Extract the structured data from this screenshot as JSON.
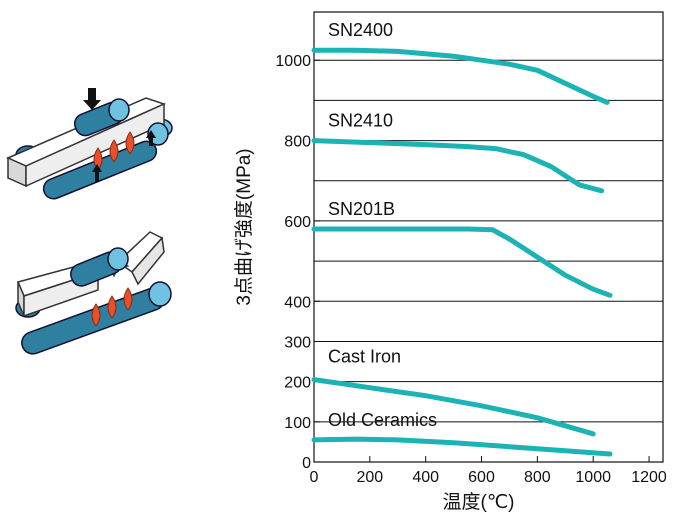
{
  "chart_data": {
    "type": "line",
    "title": "",
    "xlabel": "温度(℃)",
    "ylabel": "3点曲げ強度(MPa)",
    "xlim": [
      0,
      1250
    ],
    "ylim": [
      0,
      1120
    ],
    "x_ticks": [
      0,
      200,
      400,
      600,
      800,
      1000,
      1200
    ],
    "y_ticks": [
      0,
      100,
      200,
      300,
      400,
      600,
      800,
      1000
    ],
    "grid": {
      "horizontal_lines": [
        100,
        200,
        300,
        400,
        500,
        600,
        700,
        800,
        900,
        1000
      ]
    },
    "line_color": "#1bb3b3",
    "series": [
      {
        "name": "SN2400",
        "x": [
          0,
          150,
          300,
          500,
          700,
          800,
          1000,
          1050
        ],
        "y": [
          1025,
          1025,
          1022,
          1010,
          990,
          975,
          910,
          895
        ]
      },
      {
        "name": "SN2410",
        "x": [
          0,
          200,
          400,
          550,
          650,
          750,
          850,
          950,
          1030
        ],
        "y": [
          800,
          795,
          790,
          785,
          780,
          765,
          735,
          690,
          675
        ]
      },
      {
        "name": "SN201B",
        "x": [
          0,
          200,
          400,
          550,
          640,
          700,
          800,
          900,
          1000,
          1060
        ],
        "y": [
          580,
          580,
          580,
          580,
          578,
          555,
          510,
          465,
          430,
          415
        ]
      },
      {
        "name": "Cast Iron",
        "x": [
          0,
          200,
          400,
          600,
          800,
          900,
          1000
        ],
        "y": [
          205,
          185,
          165,
          140,
          110,
          90,
          70
        ]
      },
      {
        "name": "Old Ceramics",
        "x": [
          0,
          150,
          300,
          500,
          700,
          900,
          1060
        ],
        "y": [
          55,
          57,
          55,
          48,
          38,
          28,
          20
        ]
      }
    ]
  }
}
